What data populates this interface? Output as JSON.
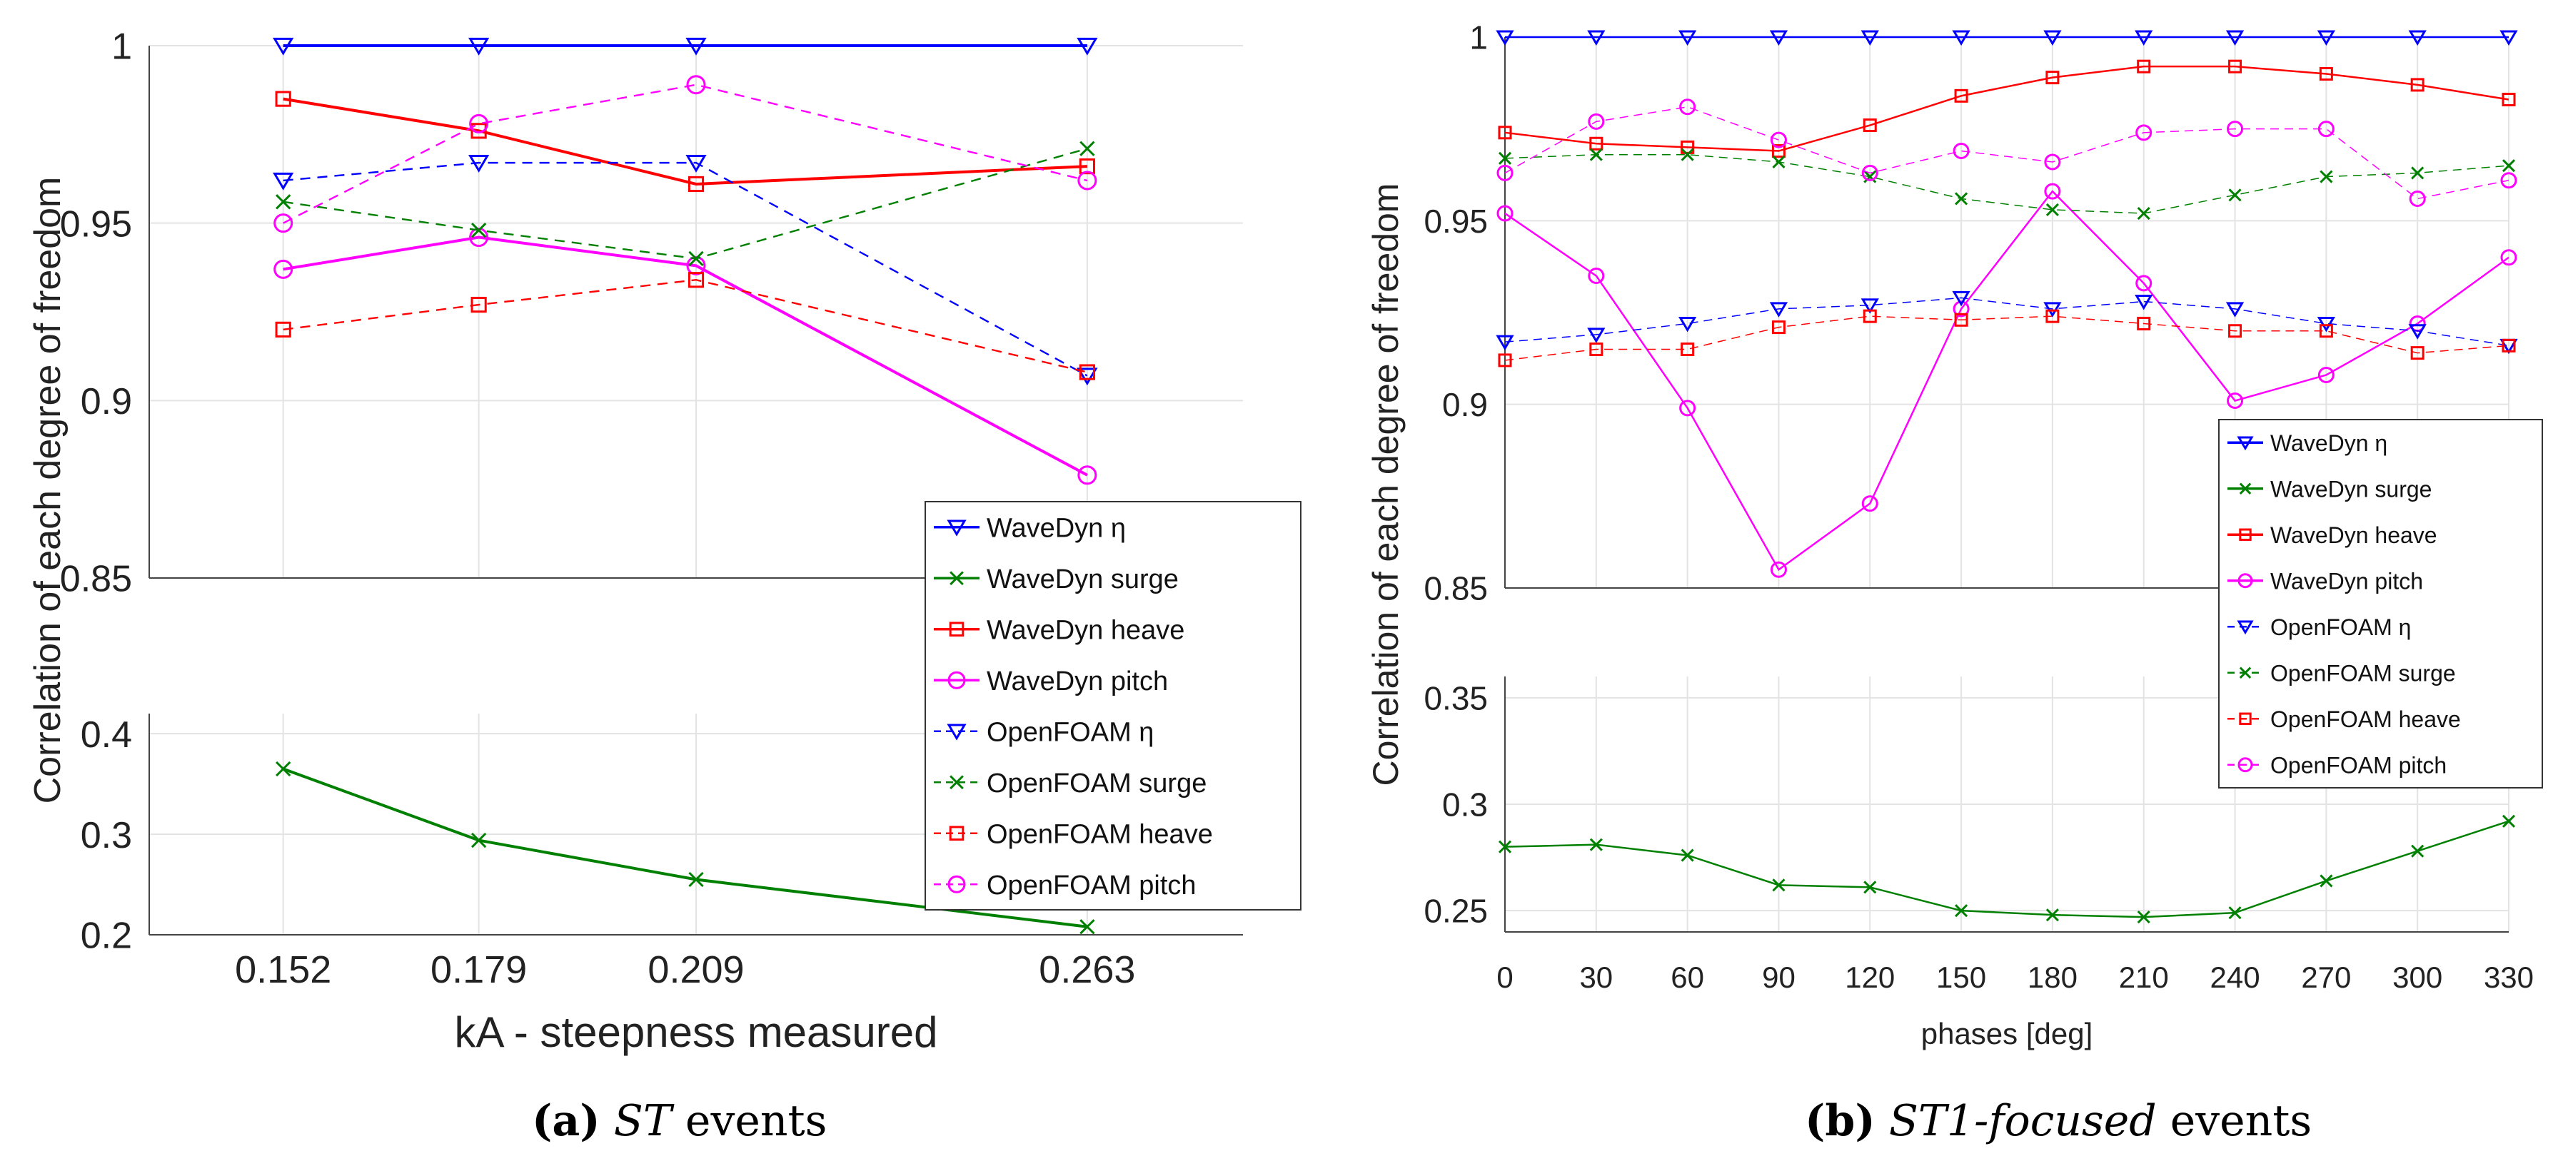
{
  "figure": {
    "captions": [
      {
        "label": "(a)",
        "italic": "ST",
        "rest": " events"
      },
      {
        "label": "(b)",
        "italic": "ST1-focused",
        "rest": " events"
      }
    ]
  },
  "chart_data": [
    {
      "type": "line",
      "title": "",
      "xlabel": "kA - steepness measured",
      "ylabel": "Correlation of each degree of freedom",
      "categories": [
        "0.152",
        "0.179",
        "0.209",
        "0.263"
      ],
      "x": [
        0.152,
        0.179,
        0.209,
        0.263
      ],
      "xlim": [
        0.1335,
        0.2845
      ],
      "ylim_top": [
        0.85,
        1.0
      ],
      "yticks_top": [
        "0.85",
        "0.9",
        "0.95",
        "1"
      ],
      "ylim_bottom": [
        0.2,
        0.42
      ],
      "yticks_bottom": [
        "0.2",
        "0.3",
        "0.4"
      ],
      "grid": true,
      "legend_position": "bottom-right of top panel",
      "series": [
        {
          "name": "WaveDyn η",
          "panel": "top",
          "values": [
            1.0,
            1.0,
            1.0,
            1.0
          ],
          "color": "#0000FF",
          "marker": "triangle-down",
          "dashed": false
        },
        {
          "name": "WaveDyn surge",
          "panel": "bottom",
          "values": [
            0.365,
            0.294,
            0.255,
            0.208
          ],
          "color": "#008000",
          "marker": "x",
          "dashed": false
        },
        {
          "name": "WaveDyn heave",
          "panel": "top",
          "values": [
            0.985,
            0.976,
            0.961,
            0.966
          ],
          "color": "#FF0000",
          "marker": "square",
          "dashed": false
        },
        {
          "name": "WaveDyn pitch",
          "panel": "top",
          "values": [
            0.937,
            0.946,
            0.938,
            0.879
          ],
          "color": "#FF00FF",
          "marker": "circle",
          "dashed": false
        },
        {
          "name": "OpenFOAM η",
          "panel": "top",
          "values": [
            0.962,
            0.967,
            0.967,
            0.907
          ],
          "color": "#0000FF",
          "marker": "triangle-down",
          "dashed": true
        },
        {
          "name": "OpenFOAM surge",
          "panel": "top",
          "values": [
            0.956,
            0.948,
            0.94,
            0.971
          ],
          "color": "#008000",
          "marker": "x",
          "dashed": true
        },
        {
          "name": "OpenFOAM heave",
          "panel": "top",
          "values": [
            0.92,
            0.927,
            0.934,
            0.908
          ],
          "color": "#FF0000",
          "marker": "square",
          "dashed": true
        },
        {
          "name": "OpenFOAM pitch",
          "panel": "top",
          "values": [
            0.95,
            0.978,
            0.989,
            0.962
          ],
          "color": "#FF00FF",
          "marker": "circle",
          "dashed": true
        }
      ]
    },
    {
      "type": "line",
      "title": "",
      "xlabel": "phases [deg]",
      "ylabel": "Correlation of each degree of freedom",
      "categories": [
        "0",
        "30",
        "60",
        "90",
        "120",
        "150",
        "180",
        "210",
        "240",
        "270",
        "300",
        "330"
      ],
      "x": [
        0,
        30,
        60,
        90,
        120,
        150,
        180,
        210,
        240,
        270,
        300,
        330
      ],
      "xlim": [
        0,
        330
      ],
      "ylim_top": [
        0.85,
        1.0
      ],
      "yticks_top": [
        "0.85",
        "0.9",
        "0.95",
        "1"
      ],
      "ylim_bottom": [
        0.24,
        0.36
      ],
      "yticks_bottom": [
        "0.25",
        "0.3",
        "0.35"
      ],
      "grid": true,
      "legend_position": "bottom-right of top panel",
      "series": [
        {
          "name": "WaveDyn η",
          "panel": "top",
          "values": [
            1.0,
            1.0,
            1.0,
            1.0,
            1.0,
            1.0,
            1.0,
            1.0,
            1.0,
            1.0,
            1.0,
            1.0
          ],
          "color": "#0000FF",
          "marker": "triangle-down",
          "dashed": false
        },
        {
          "name": "WaveDyn surge",
          "panel": "bottom",
          "values": [
            0.28,
            0.281,
            0.276,
            0.262,
            0.261,
            0.25,
            0.248,
            0.247,
            0.249,
            0.264,
            0.278,
            0.292
          ],
          "color": "#008000",
          "marker": "x",
          "dashed": false
        },
        {
          "name": "WaveDyn heave",
          "panel": "top",
          "values": [
            0.974,
            0.971,
            0.97,
            0.969,
            0.976,
            0.984,
            0.989,
            0.992,
            0.992,
            0.99,
            0.987,
            0.983
          ],
          "color": "#FF0000",
          "marker": "square",
          "dashed": false
        },
        {
          "name": "WaveDyn pitch",
          "panel": "top",
          "values": [
            0.952,
            0.935,
            0.899,
            0.855,
            0.873,
            0.926,
            0.958,
            0.933,
            0.901,
            0.908,
            0.922,
            0.94
          ],
          "color": "#FF00FF",
          "marker": "circle",
          "dashed": false
        },
        {
          "name": "OpenFOAM η",
          "panel": "top",
          "values": [
            0.917,
            0.919,
            0.922,
            0.926,
            0.927,
            0.929,
            0.926,
            0.928,
            0.926,
            0.922,
            0.92,
            0.916
          ],
          "color": "#0000FF",
          "marker": "triangle-down",
          "dashed": true
        },
        {
          "name": "OpenFOAM surge",
          "panel": "top",
          "values": [
            0.967,
            0.968,
            0.968,
            0.966,
            0.962,
            0.956,
            0.953,
            0.952,
            0.957,
            0.962,
            0.963,
            0.965
          ],
          "color": "#008000",
          "marker": "x",
          "dashed": true
        },
        {
          "name": "OpenFOAM heave",
          "panel": "top",
          "values": [
            0.912,
            0.915,
            0.915,
            0.921,
            0.924,
            0.923,
            0.924,
            0.922,
            0.92,
            0.92,
            0.914,
            0.916
          ],
          "color": "#FF0000",
          "marker": "square",
          "dashed": true
        },
        {
          "name": "OpenFOAM pitch",
          "panel": "top",
          "values": [
            0.963,
            0.977,
            0.981,
            0.972,
            0.963,
            0.969,
            0.966,
            0.974,
            0.975,
            0.975,
            0.956,
            0.961
          ],
          "color": "#FF00FF",
          "marker": "circle",
          "dashed": true
        }
      ]
    }
  ]
}
